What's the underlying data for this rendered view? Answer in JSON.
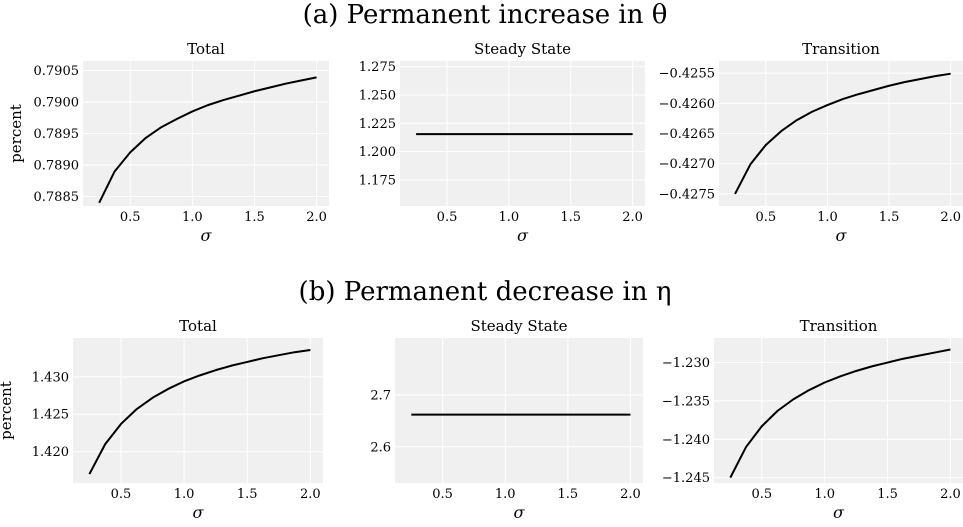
{
  "groups": [
    {
      "title": "(a) Permanent increase in θ"
    },
    {
      "title": "(b) Permanent decrease in η"
    }
  ],
  "style": {
    "plot_bg": "#f0f0f0",
    "grid": "#ffffff",
    "line": "#000000"
  },
  "chart_data": [
    {
      "type": "line",
      "group": 0,
      "title": "Total",
      "xlabel": "σ",
      "ylabel": "percent",
      "xlim": [
        0.12,
        2.1
      ],
      "ylim": [
        0.78835,
        0.79065
      ],
      "xticks": [
        0.5,
        1.0,
        1.5,
        2.0
      ],
      "xtick_labels": [
        "0.5",
        "1.0",
        "1.5",
        "2.0"
      ],
      "yticks": [
        0.7885,
        0.789,
        0.7895,
        0.79,
        0.7905
      ],
      "ytick_labels": [
        "0.7885",
        "0.7890",
        "0.7895",
        "0.7900",
        "0.7905"
      ],
      "grid": true,
      "series": [
        {
          "x": [
            0.25,
            0.375,
            0.5,
            0.625,
            0.75,
            0.875,
            1.0,
            1.125,
            1.25,
            1.375,
            1.5,
            1.625,
            1.75,
            1.875,
            2.0
          ],
          "y": [
            0.7884,
            0.7889,
            0.7892,
            0.78943,
            0.7896,
            0.78973,
            0.78985,
            0.78995,
            0.79003,
            0.7901,
            0.79017,
            0.79023,
            0.79029,
            0.79034,
            0.79039
          ]
        }
      ]
    },
    {
      "type": "line",
      "group": 0,
      "title": "Steady State",
      "xlabel": "σ",
      "ylabel": "",
      "xlim": [
        0.12,
        2.1
      ],
      "ylim": [
        1.152,
        1.28
      ],
      "xticks": [
        0.5,
        1.0,
        1.5,
        2.0
      ],
      "xtick_labels": [
        "0.5",
        "1.0",
        "1.5",
        "2.0"
      ],
      "yticks": [
        1.175,
        1.2,
        1.225,
        1.25,
        1.275
      ],
      "ytick_labels": [
        "1.175",
        "1.200",
        "1.225",
        "1.250",
        "1.275"
      ],
      "grid": true,
      "series": [
        {
          "x": [
            0.25,
            2.0
          ],
          "y": [
            1.2155,
            1.2155
          ]
        }
      ]
    },
    {
      "type": "line",
      "group": 0,
      "title": "Transition",
      "xlabel": "σ",
      "ylabel": "",
      "xlim": [
        0.12,
        2.1
      ],
      "ylim": [
        -0.4277,
        -0.4253
      ],
      "xticks": [
        0.5,
        1.0,
        1.5,
        2.0
      ],
      "xtick_labels": [
        "0.5",
        "1.0",
        "1.5",
        "2.0"
      ],
      "yticks": [
        -0.4275,
        -0.427,
        -0.4265,
        -0.426,
        -0.4255
      ],
      "ytick_labels": [
        "−0.4275",
        "−0.4270",
        "−0.4265",
        "−0.4260",
        "−0.4255"
      ],
      "grid": true,
      "series": [
        {
          "x": [
            0.25,
            0.375,
            0.5,
            0.625,
            0.75,
            0.875,
            1.0,
            1.125,
            1.25,
            1.375,
            1.5,
            1.625,
            1.75,
            1.875,
            2.0
          ],
          "y": [
            -0.4275,
            -0.42701,
            -0.42669,
            -0.42646,
            -0.42628,
            -0.42614,
            -0.42603,
            -0.42593,
            -0.42585,
            -0.42578,
            -0.42571,
            -0.42565,
            -0.4256,
            -0.42555,
            -0.42551
          ]
        }
      ]
    },
    {
      "type": "line",
      "group": 1,
      "title": "Total",
      "xlabel": "σ",
      "ylabel": "percent",
      "xlim": [
        0.12,
        2.1
      ],
      "ylim": [
        1.4158,
        1.4352
      ],
      "xticks": [
        0.5,
        1.0,
        1.5,
        2.0
      ],
      "xtick_labels": [
        "0.5",
        "1.0",
        "1.5",
        "2.0"
      ],
      "yticks": [
        1.42,
        1.425,
        1.43
      ],
      "ytick_labels": [
        "1.420",
        "1.425",
        "1.430"
      ],
      "grid": true,
      "series": [
        {
          "x": [
            0.25,
            0.375,
            0.5,
            0.625,
            0.75,
            0.875,
            1.0,
            1.125,
            1.25,
            1.375,
            1.5,
            1.625,
            1.75,
            1.875,
            2.0
          ],
          "y": [
            1.417,
            1.421,
            1.4237,
            1.4257,
            1.4272,
            1.4284,
            1.4294,
            1.4302,
            1.4309,
            1.4315,
            1.432,
            1.4325,
            1.4329,
            1.4333,
            1.4336
          ]
        }
      ]
    },
    {
      "type": "line",
      "group": 1,
      "title": "Steady State",
      "xlabel": "σ",
      "ylabel": "",
      "xlim": [
        0.12,
        2.1
      ],
      "ylim": [
        2.53,
        2.81
      ],
      "xticks": [
        0.5,
        1.0,
        1.5,
        2.0
      ],
      "xtick_labels": [
        "0.5",
        "1.0",
        "1.5",
        "2.0"
      ],
      "yticks": [
        2.6,
        2.7
      ],
      "ytick_labels": [
        "2.6",
        "2.7"
      ],
      "grid": true,
      "series": [
        {
          "x": [
            0.25,
            2.0
          ],
          "y": [
            2.662,
            2.662
          ]
        }
      ]
    },
    {
      "type": "line",
      "group": 1,
      "title": "Transition",
      "xlabel": "σ",
      "ylabel": "",
      "xlim": [
        0.12,
        2.1
      ],
      "ylim": [
        -1.2457,
        -1.2268
      ],
      "xticks": [
        0.5,
        1.0,
        1.5,
        2.0
      ],
      "xtick_labels": [
        "0.5",
        "1.0",
        "1.5",
        "2.0"
      ],
      "yticks": [
        -1.245,
        -1.24,
        -1.235,
        -1.23
      ],
      "ytick_labels": [
        "−1.245",
        "−1.240",
        "−1.235",
        "−1.230"
      ],
      "grid": true,
      "series": [
        {
          "x": [
            0.25,
            0.375,
            0.5,
            0.625,
            0.75,
            0.875,
            1.0,
            1.125,
            1.25,
            1.375,
            1.5,
            1.625,
            1.75,
            1.875,
            2.0
          ],
          "y": [
            -1.245,
            -1.241,
            -1.2383,
            -1.2363,
            -1.2348,
            -1.2336,
            -1.2326,
            -1.2318,
            -1.2311,
            -1.2305,
            -1.23,
            -1.2295,
            -1.2291,
            -1.2287,
            -1.2283
          ]
        }
      ]
    }
  ]
}
